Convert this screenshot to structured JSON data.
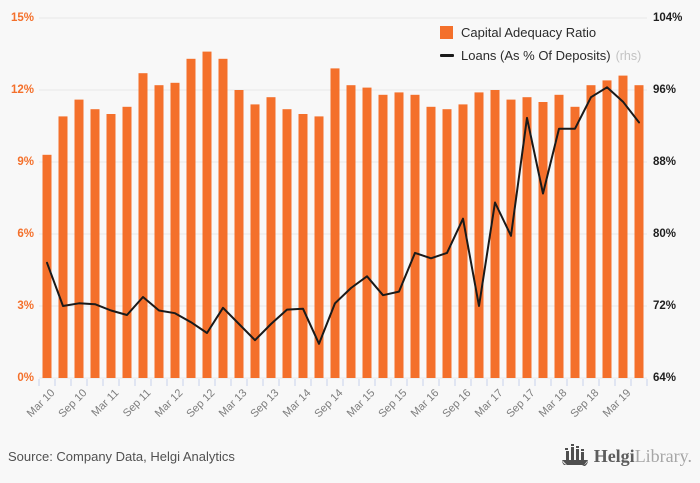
{
  "legend": {
    "bars_label": "Capital Adequacy Ratio",
    "line_label": "Loans (As % Of Deposits)",
    "line_label_suffix": "(rhs)"
  },
  "footer": {
    "source": "Source: Company Data, Helgi Analytics"
  },
  "logo": {
    "brand_bold": "Helgi",
    "brand_light": "Library",
    "suffix": "."
  },
  "colors": {
    "bar_orange": "#f4702b",
    "line_black": "#1a1a1a",
    "left_axis_text": "#f4702b",
    "right_axis_text": "#1f1f1f",
    "gridline": "#e8e8e8",
    "tick_mark": "#c9d2ec",
    "background": "#f8f8f8"
  },
  "chart_data": {
    "type": "bar+line",
    "title": "",
    "categories": [
      "Mar 10",
      "Jun 10",
      "Sep 10",
      "Dec 10",
      "Mar 11",
      "Jun 11",
      "Sep 11",
      "Dec 11",
      "Mar 12",
      "Jun 12",
      "Sep 12",
      "Dec 12",
      "Mar 13",
      "Jun 13",
      "Sep 13",
      "Dec 13",
      "Mar 14",
      "Jun 14",
      "Sep 14",
      "Dec 14",
      "Mar 15",
      "Jun 15",
      "Sep 15",
      "Dec 15",
      "Mar 16",
      "Jun 16",
      "Sep 16",
      "Dec 16",
      "Mar 17",
      "Jun 17",
      "Sep 17",
      "Dec 17",
      "Mar 18",
      "Jun 18",
      "Sep 18",
      "Dec 18",
      "Mar 19",
      "Jun 19"
    ],
    "x_tick_labels": [
      "Mar 10",
      "Sep 10",
      "Mar 11",
      "Sep 11",
      "Mar 12",
      "Sep 12",
      "Mar 13",
      "Sep 13",
      "Mar 14",
      "Sep 14",
      "Mar 15",
      "Sep 15",
      "Mar 16",
      "Sep 16",
      "Mar 17",
      "Sep 17",
      "Mar 18",
      "Sep 18",
      "Mar 19"
    ],
    "series": [
      {
        "name": "Capital Adequacy Ratio",
        "type": "bar",
        "axis": "left",
        "unit": "%",
        "values": [
          9.3,
          10.9,
          11.6,
          11.2,
          11.0,
          11.3,
          12.7,
          12.2,
          12.3,
          13.3,
          13.6,
          13.3,
          12.0,
          11.4,
          11.7,
          11.2,
          11.0,
          10.9,
          12.9,
          12.2,
          12.1,
          11.8,
          11.9,
          11.8,
          11.3,
          11.2,
          11.4,
          11.9,
          12.0,
          11.6,
          11.7,
          11.5,
          11.8,
          11.3,
          12.2,
          12.4,
          12.6,
          12.2
        ]
      },
      {
        "name": "Loans (As % Of Deposits)",
        "type": "line",
        "axis": "right",
        "unit": "%",
        "values": [
          76.8,
          72.0,
          72.3,
          72.2,
          71.5,
          71.0,
          73.0,
          71.5,
          71.2,
          70.2,
          69.0,
          71.8,
          70.0,
          68.2,
          70.0,
          71.6,
          71.7,
          67.8,
          72.3,
          74.0,
          75.3,
          73.2,
          73.6,
          77.9,
          77.3,
          77.9,
          81.7,
          72.0,
          83.5,
          79.8,
          92.9,
          84.5,
          91.7,
          91.7,
          95.2,
          96.3,
          94.7,
          92.4
        ]
      }
    ],
    "left_axis": {
      "min": 0,
      "max": 15,
      "step": 3,
      "tick_labels": [
        "0%",
        "3%",
        "6%",
        "9%",
        "12%",
        "15%"
      ]
    },
    "right_axis": {
      "min": 64,
      "max": 104,
      "step": 8,
      "tick_labels": [
        "64%",
        "72%",
        "80%",
        "88%",
        "96%",
        "104%"
      ]
    },
    "grid": true,
    "legend_position": "top-right"
  }
}
